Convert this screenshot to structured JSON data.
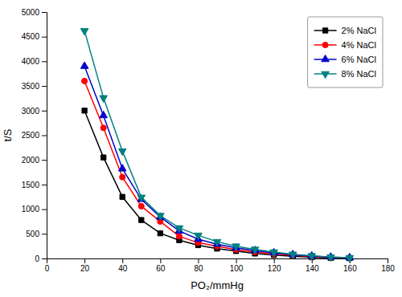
{
  "chart_data": {
    "type": "line",
    "x": [
      20,
      30,
      40,
      50,
      60,
      70,
      80,
      90,
      100,
      110,
      120,
      130,
      140,
      150,
      160
    ],
    "series": [
      {
        "name": "2% NaCl",
        "color": "#000000",
        "marker": "square",
        "values": [
          3000,
          2050,
          1250,
          780,
          510,
          370,
          270,
          200,
          150,
          100,
          70,
          45,
          25,
          10,
          5
        ]
      },
      {
        "name": "4% NaCl",
        "color": "#ff0000",
        "marker": "circle",
        "values": [
          3600,
          2650,
          1650,
          1060,
          750,
          450,
          320,
          250,
          180,
          130,
          95,
          65,
          40,
          22,
          12
        ]
      },
      {
        "name": "6% NaCl",
        "color": "#0000cc",
        "marker": "triangle-up",
        "values": [
          3900,
          2900,
          1820,
          1200,
          840,
          560,
          390,
          290,
          215,
          160,
          115,
          78,
          50,
          28,
          14
        ]
      },
      {
        "name": "8% NaCl",
        "color": "#008080",
        "marker": "triangle-down",
        "values": [
          4620,
          3260,
          2180,
          1240,
          870,
          620,
          470,
          340,
          250,
          185,
          130,
          85,
          55,
          30,
          15
        ]
      }
    ],
    "xlim": [
      0,
      180
    ],
    "ylim": [
      0,
      5000
    ],
    "xticks": [
      0,
      20,
      40,
      60,
      80,
      100,
      120,
      140,
      160,
      180
    ],
    "yticks": [
      0,
      500,
      1000,
      1500,
      2000,
      2500,
      3000,
      3500,
      4000,
      4500,
      5000
    ],
    "xlabel": "PO₂/mmHg",
    "ylabel": "t/S",
    "legend": "upper right",
    "grid": false
  }
}
